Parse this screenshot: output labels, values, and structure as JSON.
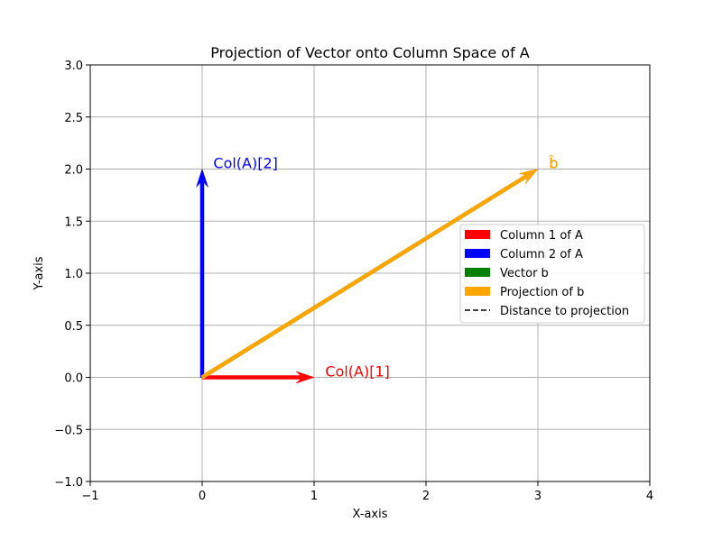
{
  "chart_data": {
    "type": "vector",
    "title": "Projection of Vector onto Column Space of A",
    "xlabel": "X-axis",
    "ylabel": "Y-axis",
    "xlim": [
      -1,
      4
    ],
    "ylim": [
      -1,
      3
    ],
    "xticks": [
      -1,
      0,
      1,
      2,
      3,
      4
    ],
    "yticks": [
      -1.0,
      -0.5,
      0.0,
      0.5,
      1.0,
      1.5,
      2.0,
      2.5,
      3.0
    ],
    "xtick_labels": [
      "−1",
      "0",
      "1",
      "2",
      "3",
      "4"
    ],
    "ytick_labels": [
      "−1.0",
      "−0.5",
      "0.0",
      "0.5",
      "1.0",
      "1.5",
      "2.0",
      "2.5",
      "3.0"
    ],
    "grid": true,
    "legend_position": "center-right",
    "vectors": [
      {
        "name": "Column 1 of A",
        "from": [
          0,
          0
        ],
        "to": [
          1,
          0
        ],
        "color": "#ff0000"
      },
      {
        "name": "Column 2 of A",
        "from": [
          0,
          0
        ],
        "to": [
          0,
          2
        ],
        "color": "#0000ff"
      },
      {
        "name": "Vector b",
        "from": [
          0,
          0
        ],
        "to": [
          3,
          2
        ],
        "color": "#008000"
      },
      {
        "name": "Projection of b",
        "from": [
          0,
          0
        ],
        "to": [
          3,
          2
        ],
        "color": "#ffa500"
      }
    ],
    "distance_line": {
      "name": "Distance to projection",
      "from": [
        3,
        2
      ],
      "to": [
        3,
        2
      ],
      "color": "#000000",
      "style": "dashed"
    },
    "annotations": [
      {
        "text": "Col(A)[1]",
        "at": [
          1.1,
          0.05
        ],
        "color": "#ff0000"
      },
      {
        "text": "Col(A)[2]",
        "at": [
          0.1,
          2.05
        ],
        "color": "#0000ff"
      },
      {
        "text": "b",
        "at": [
          3.1,
          2.05
        ],
        "color": "#008000"
      },
      {
        "text": "b̂",
        "at": [
          3.1,
          2.05
        ],
        "color": "#ffa500"
      }
    ],
    "legend": [
      {
        "label": "Column 1 of A",
        "color": "#ff0000",
        "kind": "patch"
      },
      {
        "label": "Column 2 of A",
        "color": "#0000ff",
        "kind": "patch"
      },
      {
        "label": "Vector b",
        "color": "#008000",
        "kind": "patch"
      },
      {
        "label": "Projection of b",
        "color": "#ffa500",
        "kind": "patch"
      },
      {
        "label": "Distance to projection",
        "color": "#000000",
        "kind": "dashed-line"
      }
    ]
  }
}
